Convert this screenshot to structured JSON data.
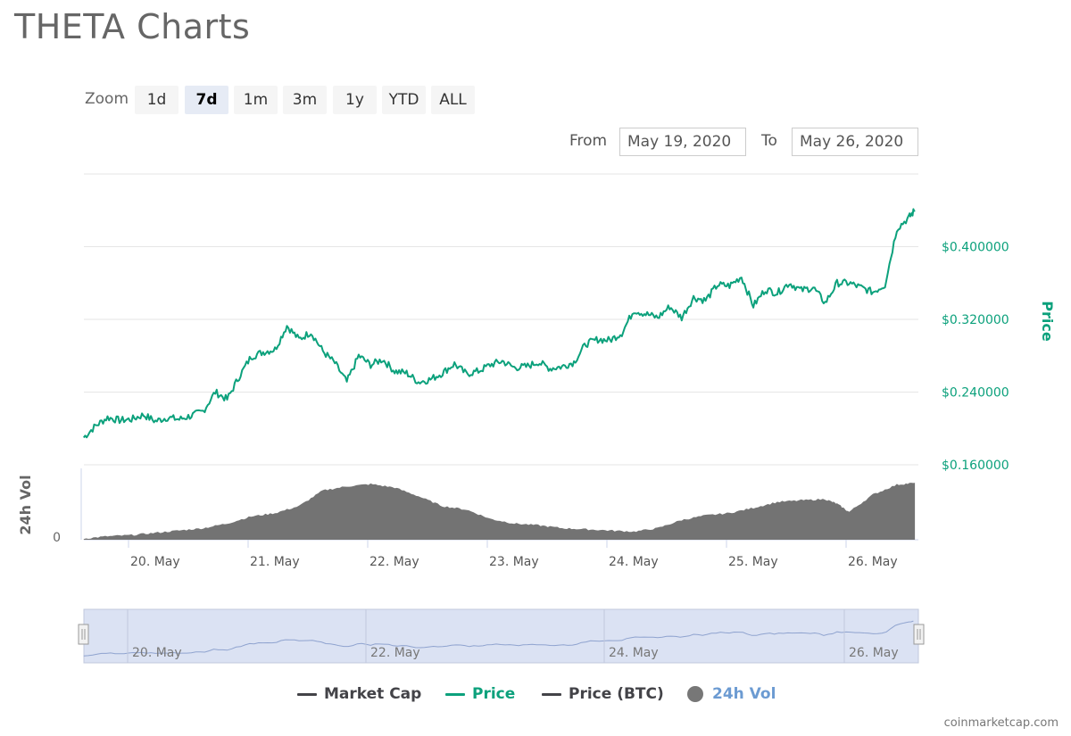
{
  "page": {
    "title": "THETA Charts"
  },
  "zoom": {
    "label": "Zoom",
    "buttons": [
      "1d",
      "7d",
      "1m",
      "3m",
      "1y",
      "YTD",
      "ALL"
    ],
    "active": "7d"
  },
  "range": {
    "from_label": "From",
    "from_value": "May 19, 2020",
    "to_label": "To",
    "to_value": "May 26, 2020"
  },
  "chart_data": {
    "type": "line",
    "title": "THETA Charts",
    "x_axis": {
      "tick_labels": [
        "20. May",
        "21. May",
        "22. May",
        "23. May",
        "24. May",
        "25. May",
        "26. May"
      ],
      "range": [
        "2020-05-19T15:00",
        "2020-05-26T14:00"
      ]
    },
    "y_axis_price": {
      "label": "Price",
      "tick_labels": [
        "$0.160000",
        "$0.240000",
        "$0.320000",
        "$0.400000"
      ],
      "ticks": [
        0.16,
        0.24,
        0.32,
        0.4
      ],
      "range": [
        0.16,
        0.48
      ]
    },
    "y_axis_volume": {
      "label": "24h Vol",
      "tick_labels": [
        "0"
      ]
    },
    "grid": true,
    "legend_position": "bottom",
    "series": [
      {
        "name": "Price",
        "color": "#0ca17c",
        "x_days": [
          0.0,
          0.1,
          0.2,
          0.3,
          0.4,
          0.5,
          0.6,
          0.7,
          0.8,
          0.9,
          1.0,
          1.1,
          1.2,
          1.3,
          1.4,
          1.5,
          1.6,
          1.7,
          1.8,
          1.9,
          2.0,
          2.1,
          2.2,
          2.3,
          2.4,
          2.5,
          2.6,
          2.7,
          2.8,
          2.9,
          3.0,
          3.1,
          3.2,
          3.3,
          3.4,
          3.5,
          3.6,
          3.7,
          3.8,
          3.9,
          4.0,
          4.1,
          4.2,
          4.3,
          4.4,
          4.5,
          4.6,
          4.7,
          4.8,
          4.9,
          5.0,
          5.1,
          5.2,
          5.3,
          5.4,
          5.5,
          5.6,
          5.7,
          5.8,
          5.9,
          6.0,
          6.1,
          6.2,
          6.3,
          6.4,
          6.5,
          6.6,
          6.7,
          6.8,
          6.9,
          6.95
        ],
        "values": [
          0.19,
          0.203,
          0.212,
          0.209,
          0.21,
          0.215,
          0.208,
          0.212,
          0.21,
          0.214,
          0.219,
          0.24,
          0.232,
          0.257,
          0.279,
          0.284,
          0.287,
          0.313,
          0.298,
          0.306,
          0.285,
          0.272,
          0.251,
          0.28,
          0.27,
          0.276,
          0.263,
          0.261,
          0.251,
          0.254,
          0.261,
          0.271,
          0.26,
          0.263,
          0.27,
          0.274,
          0.267,
          0.268,
          0.273,
          0.266,
          0.268,
          0.273,
          0.293,
          0.298,
          0.297,
          0.305,
          0.33,
          0.326,
          0.322,
          0.334,
          0.322,
          0.344,
          0.341,
          0.358,
          0.357,
          0.367,
          0.335,
          0.353,
          0.349,
          0.36,
          0.352,
          0.355,
          0.338,
          0.36,
          0.36,
          0.355,
          0.35,
          0.358,
          0.42,
          0.432,
          0.44
        ]
      },
      {
        "name": "24h Vol",
        "color": "#737373",
        "x_days": [
          0.0,
          0.2,
          0.4,
          0.6,
          0.8,
          1.0,
          1.2,
          1.4,
          1.6,
          1.8,
          2.0,
          2.2,
          2.4,
          2.6,
          2.8,
          3.0,
          3.2,
          3.4,
          3.6,
          3.8,
          4.0,
          4.2,
          4.4,
          4.6,
          4.8,
          5.0,
          5.2,
          5.4,
          5.6,
          5.8,
          6.0,
          6.2,
          6.3,
          6.4,
          6.6,
          6.8,
          6.95
        ],
        "values": [
          0.02,
          0.06,
          0.08,
          0.12,
          0.16,
          0.2,
          0.28,
          0.4,
          0.46,
          0.58,
          0.85,
          0.92,
          0.96,
          0.9,
          0.75,
          0.58,
          0.52,
          0.36,
          0.28,
          0.25,
          0.2,
          0.18,
          0.16,
          0.14,
          0.2,
          0.34,
          0.42,
          0.46,
          0.55,
          0.65,
          0.68,
          0.7,
          0.62,
          0.48,
          0.78,
          0.95,
          0.98
        ]
      }
    ]
  },
  "navigator": {
    "tick_labels": [
      "20. May",
      "22. May",
      "24. May",
      "26. May"
    ]
  },
  "legend": {
    "items": [
      {
        "label": "Market Cap",
        "color": "#434348"
      },
      {
        "label": "Price",
        "color": "#0ca17c"
      },
      {
        "label": "Price (BTC)",
        "color": "#434348"
      },
      {
        "label": "24h Vol",
        "color": "#6c9bd2",
        "marker": "#777777"
      }
    ]
  },
  "credit": "coinmarketcap.com"
}
